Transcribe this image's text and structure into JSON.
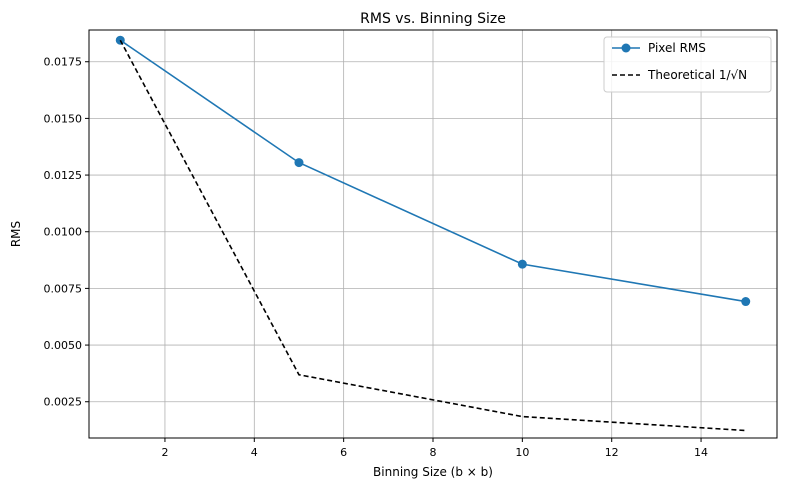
{
  "chart_data": {
    "type": "line",
    "title": "RMS vs. Binning Size",
    "xlabel": "Binning Size (b × b)",
    "ylabel": "RMS",
    "x": [
      1,
      5,
      10,
      15
    ],
    "xlim": [
      0.3,
      15.7
    ],
    "ylim": [
      0.0009,
      0.0189
    ],
    "xticks": [
      2,
      4,
      6,
      8,
      10,
      12,
      14
    ],
    "yticks": [
      0.0025,
      0.005,
      0.0075,
      0.01,
      0.0125,
      0.015,
      0.0175
    ],
    "xtick_labels": [
      "2",
      "4",
      "6",
      "8",
      "10",
      "12",
      "14"
    ],
    "ytick_labels": [
      "0.0025",
      "0.0050",
      "0.0075",
      "0.0100",
      "0.0125",
      "0.0150",
      "0.0175"
    ],
    "grid": true,
    "legend_position": "top-right",
    "series": [
      {
        "name": "Pixel RMS",
        "values": [
          0.01845,
          0.01305,
          0.00857,
          0.00692
        ],
        "color": "#1f77b4",
        "style": "solid",
        "marker": "circle"
      },
      {
        "name": "Theoretical 1/√N",
        "values": [
          0.01845,
          0.00369,
          0.001845,
          0.00123
        ],
        "color": "#000000",
        "style": "dashed",
        "marker": "none"
      }
    ]
  }
}
